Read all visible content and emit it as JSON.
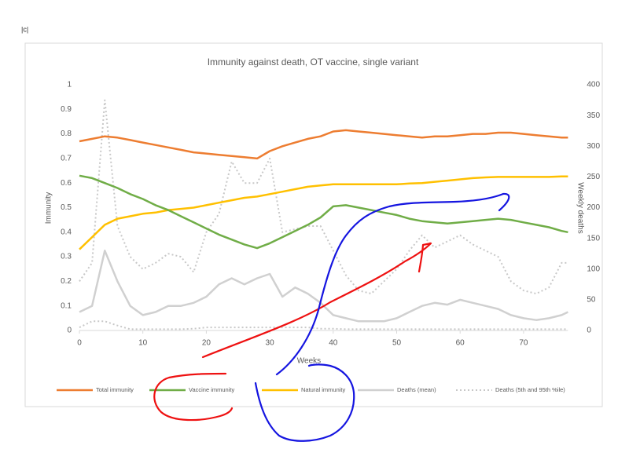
{
  "panel_label": "|c|",
  "chart_data": {
    "type": "line",
    "title": "Immunity against death, OT vaccine, single variant",
    "x_label": "Weeks",
    "y_label": "Immunity",
    "y2_label": "Weekly deaths",
    "x": [
      0,
      2,
      4,
      6,
      8,
      10,
      12,
      14,
      16,
      18,
      20,
      22,
      24,
      26,
      28,
      30,
      32,
      34,
      36,
      38,
      40,
      42,
      44,
      46,
      48,
      50,
      52,
      54,
      56,
      58,
      60,
      62,
      64,
      66,
      68,
      70,
      72,
      74,
      76,
      77
    ],
    "xlim": [
      0,
      77
    ],
    "xticks": [
      0,
      10,
      20,
      30,
      40,
      50,
      60,
      70
    ],
    "ylim": [
      0,
      1
    ],
    "yticks": [
      0,
      0.1,
      0.2,
      0.3,
      0.4,
      0.5,
      0.6,
      0.7,
      0.8,
      0.9,
      1
    ],
    "y2lim": [
      0,
      400
    ],
    "y2ticks": [
      0,
      50,
      100,
      150,
      200,
      250,
      300,
      350,
      400
    ],
    "grid": false,
    "legend": "bottom",
    "series": [
      {
        "name": "Total immunity",
        "color": "#ed7d31",
        "width": 2.5,
        "values": [
          0.77,
          0.78,
          0.79,
          0.785,
          0.775,
          0.765,
          0.755,
          0.745,
          0.735,
          0.725,
          0.72,
          0.715,
          0.71,
          0.705,
          0.7,
          0.73,
          0.75,
          0.765,
          0.78,
          0.79,
          0.81,
          0.815,
          0.81,
          0.805,
          0.8,
          0.795,
          0.79,
          0.785,
          0.79,
          0.79,
          0.795,
          0.8,
          0.8,
          0.805,
          0.805,
          0.8,
          0.795,
          0.79,
          0.785,
          0.785
        ]
      },
      {
        "name": "Vaccine immunity",
        "color": "#70ad47",
        "width": 2.5,
        "values": [
          0.63,
          0.62,
          0.6,
          0.58,
          0.555,
          0.535,
          0.51,
          0.49,
          0.465,
          0.44,
          0.415,
          0.39,
          0.37,
          0.35,
          0.335,
          0.355,
          0.38,
          0.405,
          0.43,
          0.46,
          0.505,
          0.51,
          0.5,
          0.49,
          0.48,
          0.47,
          0.455,
          0.445,
          0.44,
          0.435,
          0.44,
          0.445,
          0.45,
          0.455,
          0.45,
          0.44,
          0.43,
          0.42,
          0.405,
          0.4
        ]
      },
      {
        "name": "Natural immunity",
        "color": "#ffc000",
        "width": 2.5,
        "values": [
          0.33,
          0.38,
          0.43,
          0.455,
          0.465,
          0.475,
          0.48,
          0.49,
          0.495,
          0.5,
          0.51,
          0.52,
          0.53,
          0.54,
          0.545,
          0.555,
          0.565,
          0.575,
          0.585,
          0.59,
          0.595,
          0.595,
          0.595,
          0.595,
          0.595,
          0.595,
          0.598,
          0.6,
          0.605,
          0.61,
          0.615,
          0.62,
          0.623,
          0.625,
          0.625,
          0.625,
          0.625,
          0.625,
          0.627,
          0.627
        ]
      },
      {
        "name": "Deaths (mean)",
        "color": "#d0d0d0",
        "width": 2.5,
        "axis": "y2",
        "values": [
          30,
          40,
          130,
          80,
          40,
          25,
          30,
          40,
          40,
          45,
          55,
          75,
          85,
          75,
          85,
          92,
          55,
          70,
          60,
          45,
          25,
          20,
          15,
          15,
          15,
          20,
          30,
          40,
          45,
          42,
          50,
          45,
          40,
          35,
          25,
          20,
          17,
          20,
          25,
          30
        ]
      },
      {
        "name": "Deaths (5th and 95th %ile)",
        "color": "#c8c8c8",
        "width": 2,
        "dashed": true,
        "axis": "y2",
        "values": [
          80,
          110,
          375,
          170,
          120,
          100,
          110,
          125,
          120,
          95,
          160,
          190,
          275,
          240,
          240,
          280,
          160,
          165,
          170,
          170,
          130,
          90,
          65,
          60,
          80,
          100,
          130,
          155,
          135,
          145,
          155,
          140,
          130,
          120,
          80,
          65,
          60,
          70,
          110,
          110
        ],
        "lower_values": [
          5,
          15,
          15,
          8,
          2,
          2,
          2,
          2,
          2,
          3,
          5,
          5,
          5,
          5,
          5,
          5,
          5,
          5,
          5,
          3,
          3,
          2,
          2,
          2,
          2,
          2,
          2,
          2,
          2,
          2,
          2,
          2,
          2,
          2,
          2,
          2,
          2,
          2,
          2,
          2
        ]
      }
    ]
  }
}
